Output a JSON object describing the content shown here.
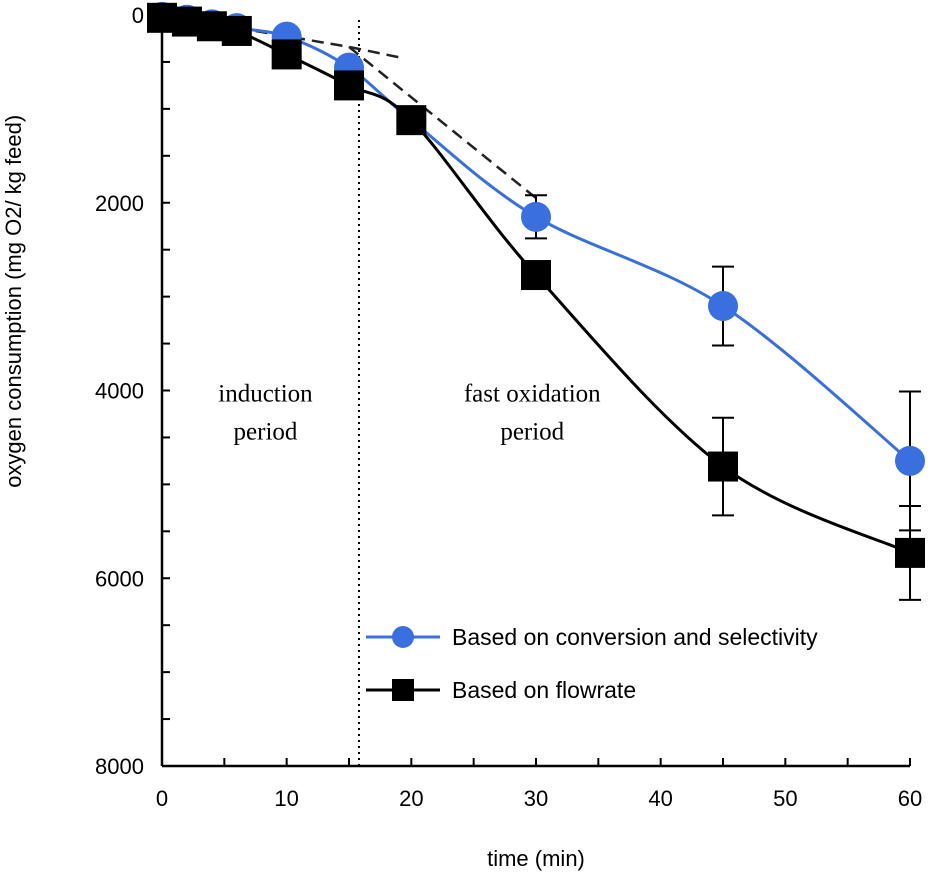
{
  "chart_data": {
    "type": "line",
    "title": "",
    "xlabel": "time (min)",
    "ylabel": "oxygen consumption (mg O2/ kg feed)",
    "xlim": [
      0,
      60
    ],
    "ylim": [
      0,
      8000
    ],
    "y_inverted": true,
    "x_ticks": [
      0,
      10,
      20,
      30,
      40,
      50,
      60
    ],
    "y_ticks": [
      0,
      2000,
      4000,
      6000,
      8000
    ],
    "grid": false,
    "legend_position": "bottom-right",
    "series": [
      {
        "name": "Based on conversion and selectivity",
        "color": "#3a6fe0",
        "marker": "circle",
        "x": [
          0,
          2,
          4,
          6,
          10,
          15,
          20,
          30,
          45,
          60
        ],
        "y": [
          20,
          50,
          100,
          140,
          230,
          560,
          1120,
          2150,
          3100,
          4750
        ],
        "error": [
          null,
          null,
          null,
          null,
          null,
          null,
          null,
          230,
          420,
          740
        ]
      },
      {
        "name": "Based on flowrate",
        "color": "#000000",
        "marker": "square",
        "x": [
          0,
          2,
          4,
          6,
          10,
          15,
          20,
          30,
          45,
          60
        ],
        "y": [
          30,
          70,
          120,
          170,
          420,
          750,
          1120,
          2770,
          4810,
          5730
        ],
        "error": [
          null,
          null,
          null,
          null,
          null,
          null,
          null,
          null,
          520,
          500
        ]
      }
    ],
    "reference_lines": [
      {
        "style": "dashed",
        "x": [
          0,
          15,
          19
        ],
        "y": [
          0,
          340,
          450
        ]
      },
      {
        "style": "dashed",
        "x": [
          15,
          30
        ],
        "y": [
          340,
          1950
        ]
      }
    ],
    "vertical_line": {
      "x": 15.8,
      "style": "dotted"
    },
    "annotations": [
      {
        "text": [
          "induction",
          "period"
        ],
        "x": 8.3,
        "y": 4200
      },
      {
        "text": [
          "fast oxidation",
          "period"
        ],
        "x": 29.7,
        "y": 4200
      }
    ]
  }
}
